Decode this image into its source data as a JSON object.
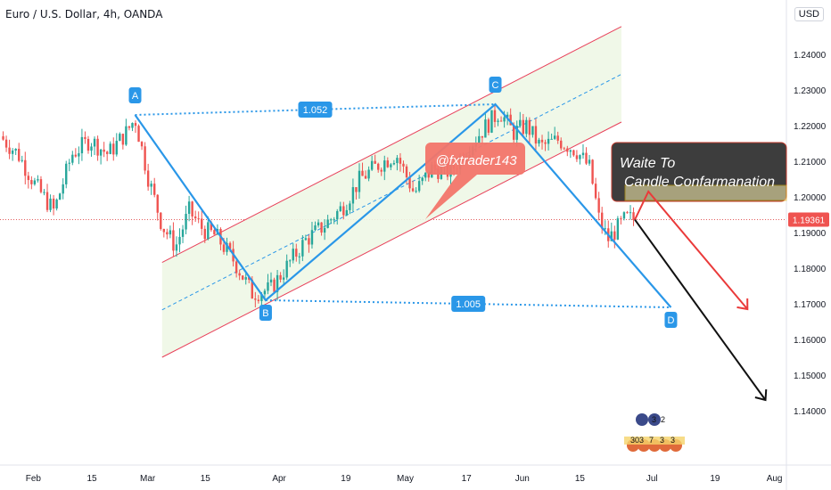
{
  "header": {
    "symbol_title": "Euro / U.S. Dollar, 4h, OANDA",
    "currency_badge": "USD"
  },
  "colors": {
    "up_candle": "#26a69a",
    "down_candle": "#ef5350",
    "pattern_line": "#2a97e8",
    "channel_line": "#e8405a",
    "channel_fill": "#eef7e6",
    "price_line": "#e25c5c",
    "callout_fill": "#f2756a",
    "note_box": "#3d3d3d",
    "red_arrow": "#ea3a3a",
    "black_arrow": "#111111"
  },
  "chart_data": {
    "type": "candlestick",
    "instrument": "Euro / U.S. Dollar",
    "interval": "4h",
    "source": "OANDA",
    "currency": "USD",
    "ylim": [
      1.135,
      1.25
    ],
    "y_ticks": [
      "1.24000",
      "1.23000",
      "1.22000",
      "1.21000",
      "1.20000",
      "1.19000",
      "1.18000",
      "1.17000",
      "1.16000",
      "1.15000",
      "1.14000"
    ],
    "x_ticks": [
      "Feb",
      "15",
      "Mar",
      "15",
      "Apr",
      "19",
      "May",
      "17",
      "Jun",
      "15",
      "Jul",
      "19",
      "Aug"
    ],
    "last_price": "1.19361",
    "price_path": [
      {
        "t": 0,
        "p": 1.217
      },
      {
        "t": 2,
        "p": 1.212
      },
      {
        "t": 4,
        "p": 1.203
      },
      {
        "t": 6,
        "p": 1.196
      },
      {
        "t": 8,
        "p": 1.212
      },
      {
        "t": 10,
        "p": 1.216
      },
      {
        "t": 12,
        "p": 1.212
      },
      {
        "t": 14,
        "p": 1.218
      },
      {
        "t": 15,
        "p": 1.222
      },
      {
        "t": 16.5,
        "p": 1.205
      },
      {
        "t": 18,
        "p": 1.192
      },
      {
        "t": 19.5,
        "p": 1.186
      },
      {
        "t": 21,
        "p": 1.196
      },
      {
        "t": 22.5,
        "p": 1.191
      },
      {
        "t": 24,
        "p": 1.189
      },
      {
        "t": 26,
        "p": 1.182
      },
      {
        "t": 28,
        "p": 1.173
      },
      {
        "t": 30,
        "p": 1.174
      },
      {
        "t": 32,
        "p": 1.181
      },
      {
        "t": 34,
        "p": 1.188
      },
      {
        "t": 36,
        "p": 1.192
      },
      {
        "t": 38,
        "p": 1.197
      },
      {
        "t": 40,
        "p": 1.205
      },
      {
        "t": 42,
        "p": 1.209
      },
      {
        "t": 44,
        "p": 1.212
      },
      {
        "t": 46,
        "p": 1.201
      },
      {
        "t": 48,
        "p": 1.208
      },
      {
        "t": 50,
        "p": 1.207
      },
      {
        "t": 52,
        "p": 1.214
      },
      {
        "t": 54,
        "p": 1.22
      },
      {
        "t": 55.5,
        "p": 1.224
      },
      {
        "t": 57,
        "p": 1.218
      },
      {
        "t": 58.5,
        "p": 1.22
      },
      {
        "t": 60,
        "p": 1.214
      },
      {
        "t": 62,
        "p": 1.216
      },
      {
        "t": 64,
        "p": 1.213
      },
      {
        "t": 65.5,
        "p": 1.208
      },
      {
        "t": 66.5,
        "p": 1.194
      },
      {
        "t": 67.5,
        "p": 1.188
      },
      {
        "t": 68.5,
        "p": 1.191
      },
      {
        "t": 69.5,
        "p": 1.194
      },
      {
        "t": 70.5,
        "p": 1.1936
      }
    ],
    "pattern": {
      "points": [
        {
          "label": "A",
          "t": 15,
          "p": 1.223
        },
        {
          "label": "B",
          "t": 29.5,
          "p": 1.171
        },
        {
          "label": "C",
          "t": 55,
          "p": 1.226
        },
        {
          "label": "D",
          "t": 74.5,
          "p": 1.169
        }
      ],
      "ratios": [
        {
          "label": "1.052",
          "from": "A",
          "to": "C"
        },
        {
          "label": "1.005",
          "from": "B",
          "to": "D"
        }
      ]
    },
    "channel": {
      "lower": [
        {
          "t": 18,
          "p": 1.155
        },
        {
          "t": 69,
          "p": 1.221
        }
      ],
      "upper": [
        {
          "t": 18,
          "p": 1.1816
        },
        {
          "t": 69,
          "p": 1.2478
        }
      ]
    },
    "annotations": {
      "watermark": "@fxtrader143",
      "note_line1": "Waite To",
      "note_line2": "Candle Confarmanation",
      "forecast_arrows": [
        {
          "name": "red",
          "path": [
            {
              "t": 70.5,
              "p": 1.1936
            },
            {
              "t": 72,
              "p": 1.2015
            },
            {
              "t": 83,
              "p": 1.1685
            }
          ]
        },
        {
          "name": "black",
          "path": [
            {
              "t": 70.5,
              "p": 1.1936
            },
            {
              "t": 85,
              "p": 1.143
            }
          ]
        }
      ]
    },
    "overlay_stickers": [
      {
        "group": "upper",
        "text": [
          "3",
          "2"
        ]
      },
      {
        "group": "lower",
        "text": [
          "303",
          "7",
          "3",
          "3"
        ]
      }
    ]
  }
}
